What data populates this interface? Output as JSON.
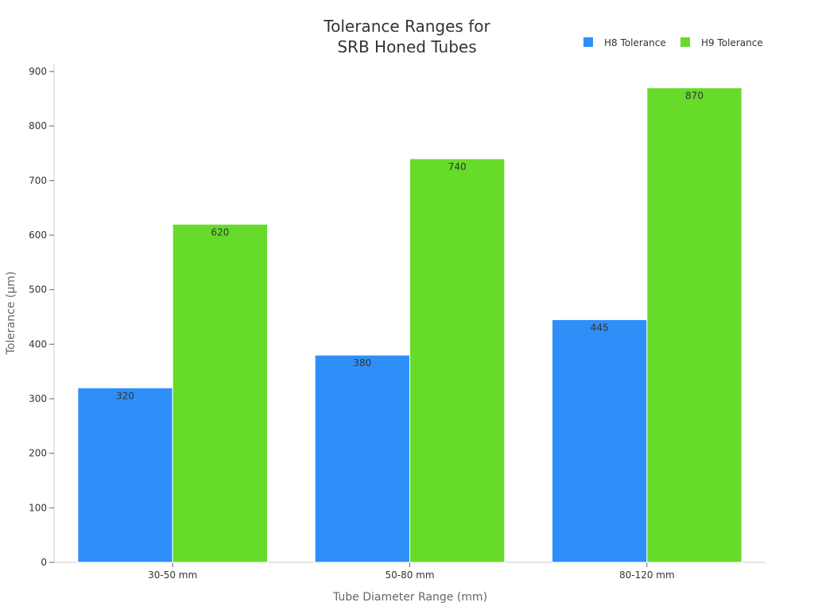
{
  "chart_data": {
    "type": "bar",
    "title_lines": [
      "Tolerance Ranges for",
      "SRB Honed Tubes"
    ],
    "xlabel": "Tube Diameter Range (mm)",
    "ylabel": "Tolerance (µm)",
    "categories": [
      "30-50 mm",
      "50-80 mm",
      "80-120 mm"
    ],
    "series": [
      {
        "name": "H8 Tolerance",
        "values": [
          320,
          380,
          445
        ],
        "color": "#2f8ff8"
      },
      {
        "name": "H9 Tolerance",
        "values": [
          620,
          740,
          870
        ],
        "color": "#66db29"
      }
    ],
    "ylim": [
      0,
      900
    ],
    "yticks": [
      0,
      100,
      200,
      300,
      400,
      500,
      600,
      700,
      800,
      900
    ],
    "grid": false,
    "legend_position": "top-right",
    "data_labels": true
  }
}
